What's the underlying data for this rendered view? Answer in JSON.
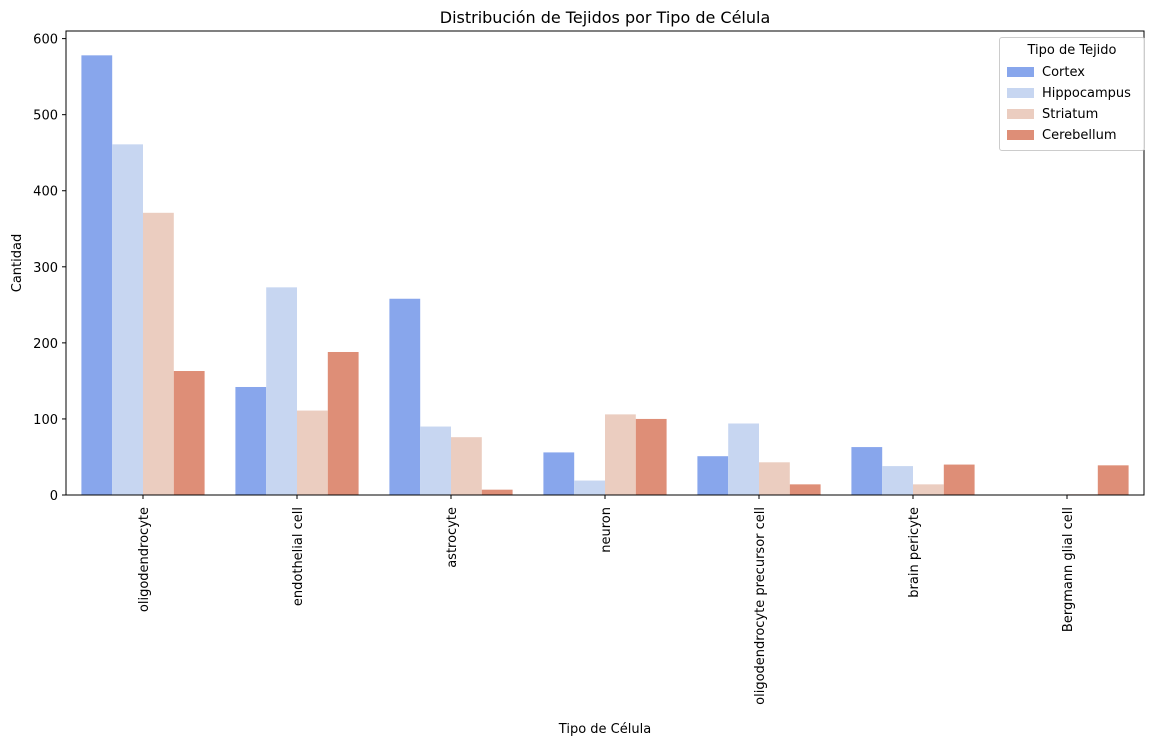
{
  "chart_data": {
    "type": "bar",
    "title": "Distribución de Tejidos por Tipo de Célula",
    "xlabel": "Tipo de Célula",
    "ylabel": "Cantidad",
    "ylim": [
      0,
      610
    ],
    "yticks": [
      0,
      100,
      200,
      300,
      400,
      500,
      600
    ],
    "grid": false,
    "legend_title": "Tipo de Tejido",
    "legend_position": "top-right",
    "categories": [
      "oligodendrocyte",
      "endothelial cell",
      "astrocyte",
      "neuron",
      "oligodendrocyte precursor cell",
      "brain pericyte",
      "Bergmann glial cell"
    ],
    "series": [
      {
        "name": "Cortex",
        "color": "#88a6ec",
        "values": [
          578,
          142,
          258,
          56,
          51,
          63,
          0
        ]
      },
      {
        "name": "Hippocampus",
        "color": "#c7d6f1",
        "values": [
          461,
          273,
          90,
          19,
          94,
          38,
          0
        ]
      },
      {
        "name": "Striatum",
        "color": "#ebcdc0",
        "values": [
          371,
          111,
          76,
          106,
          43,
          14,
          1
        ]
      },
      {
        "name": "Cerebellum",
        "color": "#de8e77",
        "values": [
          163,
          188,
          7,
          100,
          14,
          40,
          39
        ]
      }
    ]
  }
}
